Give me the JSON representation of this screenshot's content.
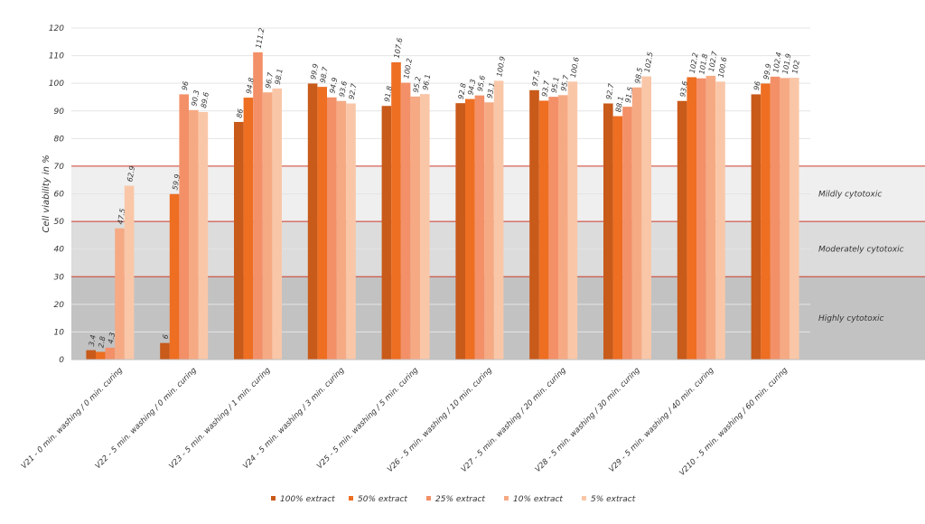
{
  "chart_data": {
    "type": "bar",
    "ylabel": "Cell viability in %",
    "ylim": [
      0,
      120
    ],
    "yticks": [
      0,
      10,
      20,
      30,
      40,
      50,
      60,
      70,
      80,
      90,
      100,
      110,
      120
    ],
    "grid": true,
    "legend_position": "bottom",
    "categories": [
      "V21 - 0 min. washing / 0 min. curing",
      "V22 - 5 min. washing / 0 min. curing",
      "V23 - 5 min. washing / 1 min. curing",
      "V24 - 5 min. washing / 3 min. curing",
      "V25 - 5 min. washing / 5 min. curing",
      "V26 - 5 min. washing / 10 min. curing",
      "V27 - 5 min. washing / 20 min. curing",
      "V28 - 5 min. washing / 30 min. curing",
      "V29 - 5 min. washing / 40 min. curing",
      "V210 - 5 min. washing / 60 min. curing"
    ],
    "series": [
      {
        "name": "100% extract",
        "color": "#c85a1a",
        "values": [
          3.4,
          6,
          86,
          99.9,
          91.8,
          92.8,
          97.5,
          92.7,
          93.6,
          96
        ]
      },
      {
        "name": "50% extract",
        "color": "#ee6e22",
        "values": [
          2.8,
          59.9,
          94.8,
          98.7,
          107.6,
          94.3,
          93.7,
          88.1,
          102.2,
          99.9
        ]
      },
      {
        "name": "25% extract",
        "color": "#f39068",
        "values": [
          4.3,
          96,
          111.2,
          94.9,
          100.2,
          95.6,
          95.1,
          91.5,
          101.8,
          102.4
        ]
      },
      {
        "name": "10% extract",
        "color": "#f6aa84",
        "values": [
          47.5,
          90.3,
          96.7,
          93.6,
          95.2,
          93.1,
          95.7,
          98.5,
          102.7,
          101.9
        ]
      },
      {
        "name": "5% extract",
        "color": "#f9c7a8",
        "values": [
          62.9,
          89.6,
          98.1,
          92.7,
          96.1,
          100.9,
          100.6,
          102.5,
          100.6,
          102
        ]
      }
    ],
    "zones": [
      {
        "label": "Mildly cytotoxic",
        "from": 50,
        "to": 70,
        "color": "#efefef"
      },
      {
        "label": "Moderately cytotoxic",
        "from": 30,
        "to": 50,
        "color": "#dcdcdc"
      },
      {
        "label": "Highly cytotoxic",
        "from": 0,
        "to": 30,
        "color": "#c2c2c2"
      }
    ],
    "threshold_lines": [
      70,
      50,
      30
    ],
    "threshold_color": "#cc3a2a"
  }
}
